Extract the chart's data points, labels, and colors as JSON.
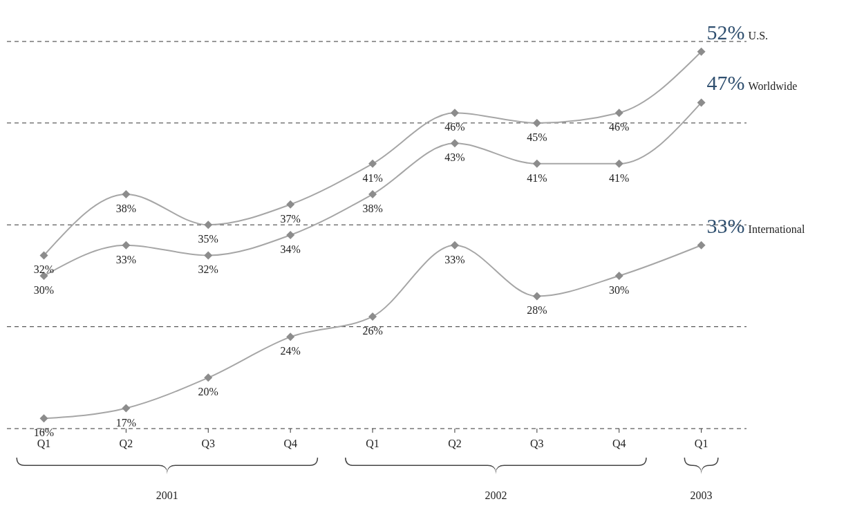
{
  "chart_data": {
    "type": "line",
    "categories": [
      "Q1",
      "Q2",
      "Q3",
      "Q4",
      "Q1",
      "Q2",
      "Q3",
      "Q4",
      "Q1"
    ],
    "series": [
      {
        "name": "U.S.",
        "color": "#a6a6a6",
        "values": [
          32,
          38,
          35,
          37,
          41,
          46,
          45,
          46,
          52
        ],
        "value_labels": [
          "32%",
          "38%",
          "35%",
          "37%",
          "41%",
          "46%",
          "45%",
          "46%",
          "52%"
        ]
      },
      {
        "name": "Worldwide",
        "color": "#a6a6a6",
        "values": [
          30,
          33,
          32,
          34,
          38,
          43,
          41,
          41,
          47
        ],
        "value_labels": [
          "30%",
          "33%",
          "32%",
          "34%",
          "38%",
          "43%",
          "41%",
          "41%",
          "47%"
        ]
      },
      {
        "name": "International",
        "color": "#a6a6a6",
        "values": [
          16,
          17,
          20,
          24,
          26,
          33,
          28,
          30,
          33
        ],
        "value_labels": [
          "16%",
          "17%",
          "20%",
          "24%",
          "26%",
          "33%",
          "28%",
          "30%",
          "33%"
        ]
      }
    ],
    "ylim": [
      15,
      53
    ],
    "yticks": [
      {
        "value": 15,
        "label": null
      },
      {
        "value": 25,
        "label": null
      },
      {
        "value": 35,
        "label": null
      },
      {
        "value": 45,
        "label": null
      }
    ],
    "grid": "y",
    "tick_labels": "x",
    "marker": "diamond",
    "legend": false,
    "annotations": [
      "2001",
      "2002",
      "2003"
    ]
  }
}
